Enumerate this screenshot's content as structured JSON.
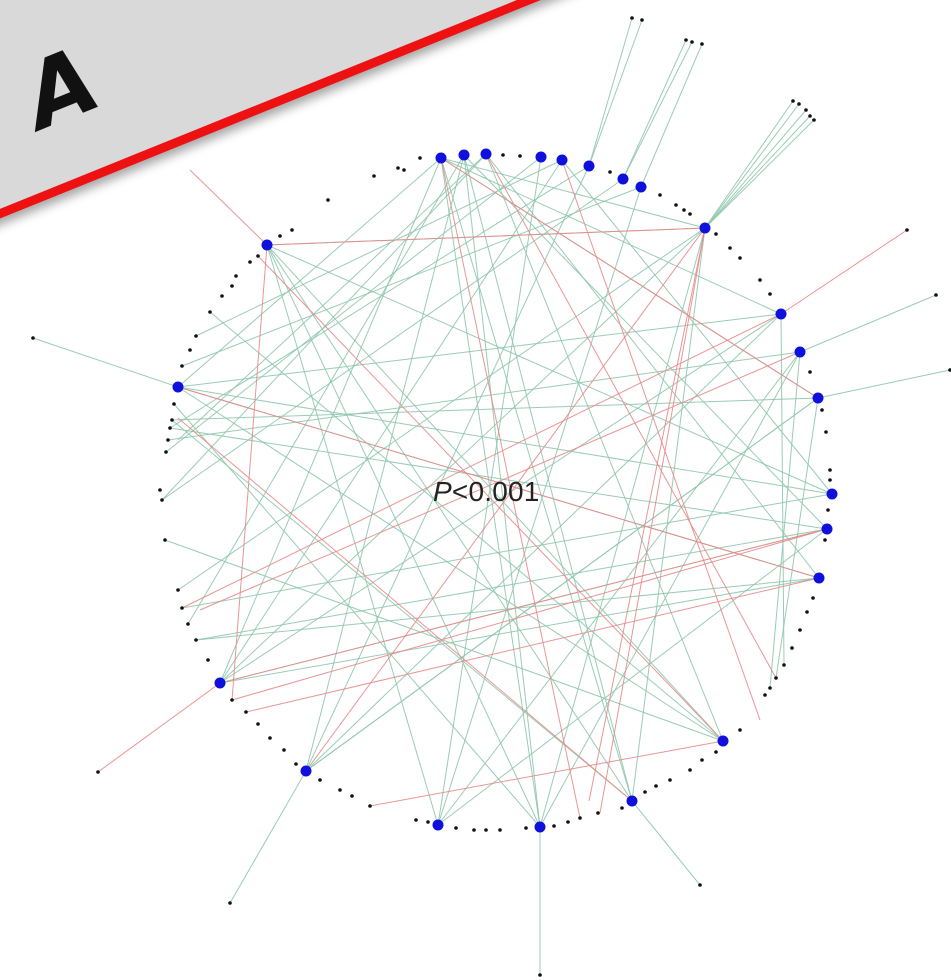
{
  "annotation": {
    "label_italic": "P",
    "label_rest": "<0.001"
  },
  "banner": {
    "text": "A"
  },
  "colors": {
    "hub": "#1010dd",
    "node": "#111111",
    "edge_positive": "#8fc7ad",
    "edge_negative": "#e88a8a",
    "banner_fill": "#d9d9d9",
    "banner_border": "#ee1111"
  }
}
